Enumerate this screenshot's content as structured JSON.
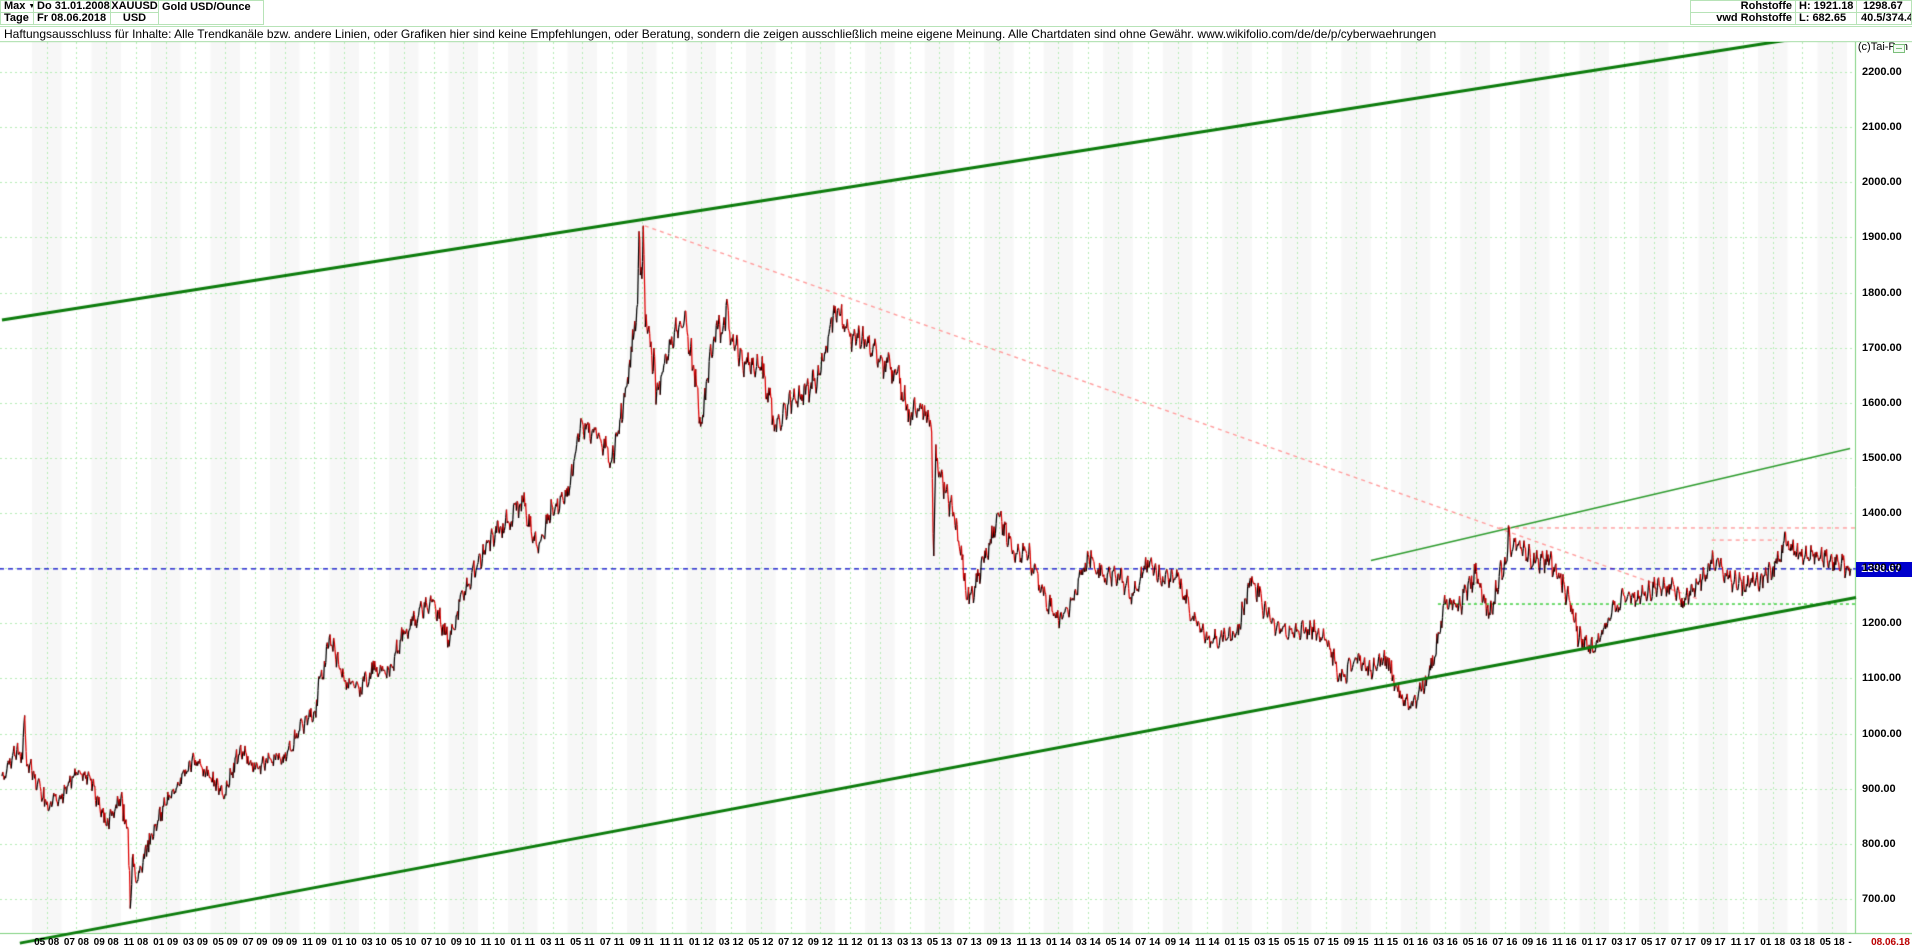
{
  "header": {
    "range_selector": "Max",
    "dropdown_arrow": "▼",
    "start_date": "Do 31.01.2008",
    "symbol": "XAUUSD",
    "period_selector": "Tage",
    "end_date": "Fr 08.06.2018",
    "currency": "USD",
    "title": "Gold USD/Ounce",
    "category": "Rohstoffe",
    "provider": "vwd Rohstoffe",
    "high_label": "H: 1921.18",
    "low_label": "L: 682.65",
    "last_price": "1298.67",
    "change_info": "40.5/374.4",
    "copyright": "(c)Tai-Pan"
  },
  "disclaimer": "Haftungsausschluss für Inhalte: Alle Trendkanäle bzw. andere Linien, oder Grafiken hier sind keine Empfehlungen, oder Beratung, sondern die zeigen ausschließlich meine eigene Meinung. Alle Chartdaten sind ohne Gewähr.  www.wikifolio.com/de/de/p/cyberwaehrungen",
  "price_tag": {
    "value": "1298.67",
    "color": "#0000cc"
  },
  "chart_data": {
    "type": "line",
    "title": "Gold USD/Ounce",
    "x_start": "2008-01",
    "x_end": "2018-06-08",
    "interval": "monthly_anchors_of_daily_line",
    "ylim": [
      640,
      2255
    ],
    "grid": true,
    "y_ticks": [
      "2200.00",
      "2100.00",
      "2000.00",
      "1900.00",
      "1800.00",
      "1700.00",
      "1600.00",
      "1500.00",
      "1400.00",
      "1300.00",
      "1200.00",
      "1100.00",
      "1000.00",
      "900.00",
      "800.00",
      "700.00"
    ],
    "y_tick_values": [
      2200,
      2100,
      2000,
      1900,
      1800,
      1700,
      1600,
      1500,
      1400,
      1300,
      1200,
      1100,
      1000,
      900,
      800,
      700
    ],
    "x_tick_labels": [
      "05 08",
      "07 08",
      "09 08",
      "11 08",
      "01 09",
      "03 09",
      "05 09",
      "07 09",
      "09 09",
      "11 09",
      "01 10",
      "03 10",
      "05 10",
      "07 10",
      "09 10",
      "11 10",
      "01 11",
      "03 11",
      "05 11",
      "07 11",
      "09 11",
      "11 11",
      "01 12",
      "03 12",
      "05 12",
      "07 12",
      "09 12",
      "11 12",
      "01 13",
      "03 13",
      "05 13",
      "07 13",
      "09 13",
      "11 13",
      "01 14",
      "03 14",
      "05 14",
      "07 14",
      "09 14",
      "11 14",
      "01 15",
      "03 15",
      "05 15",
      "07 15",
      "09 15",
      "11 15",
      "01 16",
      "03 16",
      "05 16",
      "07 16",
      "09 16",
      "11 16",
      "01 17",
      "03 17",
      "05 17",
      "07 17",
      "09 17",
      "11 17",
      "01 18",
      "03 18",
      "05 18"
    ],
    "x_axis_dash": "-",
    "x_axis_end_label": "08.06.18",
    "series": {
      "name": "Gold USD/Ounce monthly closes (daily line interpolated)",
      "first_month": "2008-01",
      "values": [
        923,
        971,
        933,
        871,
        885,
        930,
        918,
        833,
        885,
        730,
        815,
        870,
        920,
        952,
        920,
        890,
        975,
        935,
        955,
        955,
        1005,
        1040,
        1175,
        1095,
        1080,
        1115,
        1115,
        1180,
        1215,
        1240,
        1170,
        1250,
        1310,
        1360,
        1385,
        1420,
        1335,
        1410,
        1430,
        1565,
        1535,
        1500,
        1630,
        1825,
        1620,
        1720,
        1745,
        1565,
        1740,
        1715,
        1670,
        1665,
        1560,
        1600,
        1615,
        1650,
        1775,
        1720,
        1715,
        1675,
        1660,
        1580,
        1595,
        1475,
        1395,
        1235,
        1310,
        1395,
        1330,
        1325,
        1250,
        1205,
        1245,
        1325,
        1285,
        1290,
        1250,
        1315,
        1285,
        1285,
        1210,
        1170,
        1175,
        1185,
        1285,
        1215,
        1185,
        1185,
        1190,
        1170,
        1095,
        1135,
        1115,
        1140,
        1065,
        1060,
        1115,
        1235,
        1235,
        1290,
        1215,
        1320,
        1350,
        1310,
        1315,
        1270,
        1175,
        1150,
        1210,
        1250,
        1245,
        1265,
        1270,
        1240,
        1270,
        1320,
        1280,
        1270,
        1275,
        1300,
        1345,
        1320,
        1325,
        1315,
        1300,
        1298.67
      ]
    },
    "extremes": [
      {
        "month": "2008-03",
        "value": 1033,
        "at": 0.5
      },
      {
        "month": "2008-10",
        "value": 682.65,
        "at": 0.6
      },
      {
        "month": "2011-08",
        "value": 1911,
        "at": 0.8
      },
      {
        "month": "2011-09",
        "value": 1921.18,
        "at": 0.1
      },
      {
        "month": "2012-02",
        "value": 1788,
        "at": 0.7
      },
      {
        "month": "2013-04",
        "value": 1322,
        "at": 0.6
      },
      {
        "month": "2015-12",
        "value": 1046,
        "at": 0.55
      },
      {
        "month": "2016-07",
        "value": 1375,
        "at": 0.3
      },
      {
        "month": "2018-01",
        "value": 1366,
        "at": 0.8
      }
    ],
    "last_value": 1298.67,
    "high": 1921.18,
    "low": 682.65,
    "trendlines": [
      {
        "name": "upper-channel-line",
        "m1": 0,
        "v1": 1750,
        "m2": 121.6,
        "v2": 2265,
        "width": 3,
        "color": "#0c7c0c",
        "arrow": true
      },
      {
        "name": "lower-channel-line",
        "m1": 1.2,
        "v1": 620,
        "m2": 124.6,
        "v2": 1247,
        "width": 3,
        "color": "#0c7c0c"
      },
      {
        "name": "minor-rising-line",
        "m1": 92,
        "v1": 1314,
        "m2": 124.2,
        "v2": 1517,
        "width": 1.5,
        "color": "#2d9b2d"
      },
      {
        "name": "downtrend-from-2011-high",
        "m1": 43.2,
        "v1": 1921,
        "m2": 114,
        "v2": 1244,
        "width": 1.4,
        "color": "#ff9c9c",
        "dash": [
          4,
          4
        ]
      },
      {
        "name": "resistance-1373",
        "m1": 100.6,
        "v1": 1373,
        "m2": 124.6,
        "v2": 1373,
        "width": 1.4,
        "color": "#ff9c9c",
        "dash": [
          4,
          4
        ]
      },
      {
        "name": "resistance-1351",
        "m1": 114.9,
        "v1": 1351,
        "m2": 119.3,
        "v2": 1351,
        "width": 1.4,
        "color": "#ff9c9c",
        "dash": [
          4,
          4
        ]
      },
      {
        "name": "support-1235",
        "m1": 96.5,
        "v1": 1235,
        "m2": 124.6,
        "v2": 1235,
        "width": 1.4,
        "color": "#33cc33",
        "dash": [
          3,
          3
        ]
      },
      {
        "name": "last-price-level",
        "m1": -0.2,
        "v1": 1298.67,
        "m2": 124.6,
        "v2": 1298.67,
        "width": 1.2,
        "color": "#0000cc",
        "dash": [
          5,
          4
        ]
      }
    ],
    "legend": null,
    "colors": {
      "up": "#000000",
      "down": "#dd0000",
      "grid": "#b5ecb5",
      "axis": "#7ed07e",
      "band": "rgba(0,0,0,0.033)",
      "channel": "#0c7c0c",
      "last_price": "#0000cc"
    }
  }
}
